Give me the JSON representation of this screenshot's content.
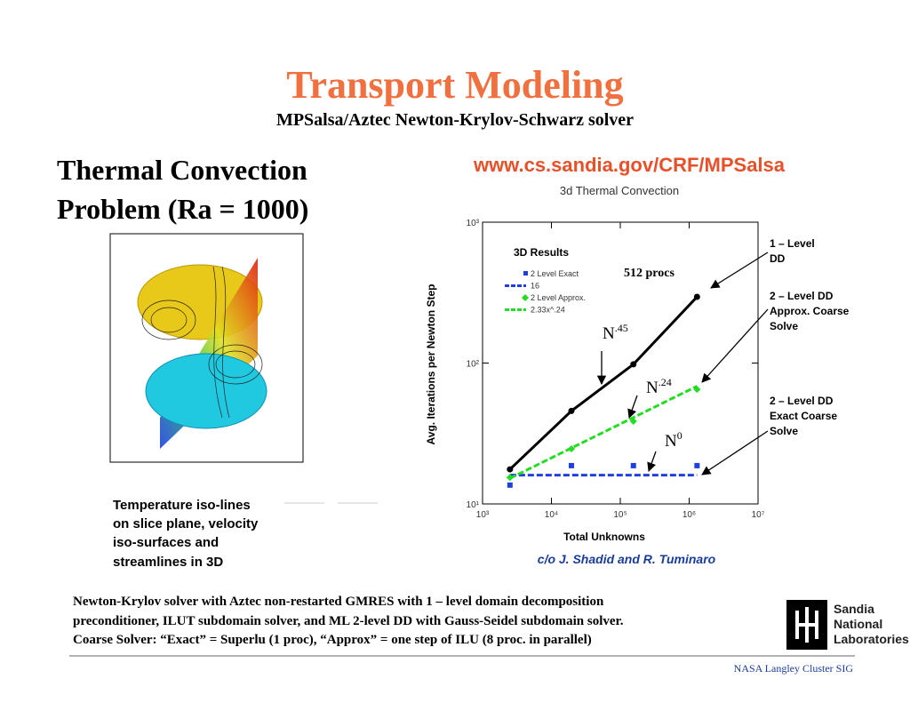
{
  "header": {
    "title": "Transport Modeling",
    "subtitle": "MPSalsa/Aztec Newton-Krylov-Schwarz solver"
  },
  "heading": [
    "Thermal Convection",
    "Problem (Ra = 1000)"
  ],
  "url": "www.cs.sandia.gov/CRF/MPSalsa",
  "caption": [
    "Temperature iso-lines",
    "on slice plane, velocity",
    "iso-surfaces and",
    "streamlines in 3D"
  ],
  "credit": "c/o J. Shadid and R. Tuminaro",
  "paragraph": [
    "Newton-Krylov solver with Aztec non-restarted GMRES with 1 – level domain decomposition",
    "preconditioner, ILUT subdomain solver, and ML 2-level DD with Gauss-Seidel subdomain solver.",
    "Coarse Solver: “Exact” = Superlu (1 proc), “Approx” = one step of ILU (8 proc. in parallel)"
  ],
  "footer": "NASA Langley Cluster SIG",
  "logo": [
    "Sandia",
    "National",
    "Laboratories"
  ],
  "annotations": [
    [
      "1 – Level",
      "DD"
    ],
    [
      "2 – Level DD",
      "Approx. Coarse",
      "Solve"
    ],
    [
      "2 – Level DD",
      "Exact Coarse",
      "Solve"
    ]
  ],
  "chart_data": {
    "type": "line",
    "title": "3d Thermal Convection",
    "x_label": "Total Unknowns",
    "y_label": "Avg. Iterations per Newton Step",
    "log_x": true,
    "log_y": true,
    "xlim": [
      1000,
      10000000
    ],
    "ylim": [
      10,
      1000
    ],
    "xticks": [
      {
        "value": 1000,
        "label": "10³"
      },
      {
        "value": 10000,
        "label": "10⁴"
      },
      {
        "value": 100000,
        "label": "10⁵"
      },
      {
        "value": 1000000,
        "label": "10⁶"
      },
      {
        "value": 10000000,
        "label": "10⁷"
      }
    ],
    "yticks": [
      {
        "value": 10,
        "label": "10¹"
      },
      {
        "value": 100,
        "label": "10²"
      },
      {
        "value": 1000,
        "label": "10³"
      }
    ],
    "notes": {
      "results": "3D Results",
      "procs": "512 procs",
      "n45": {
        "base": "N",
        "exp": ".45"
      },
      "n24": {
        "base": "N",
        "exp": ".24"
      },
      "n0": {
        "base": "N",
        "exp": "0"
      }
    },
    "series": [
      {
        "color": "#000000",
        "style": "line-markers",
        "marker": "circle",
        "x": [
          2500,
          19500,
          155000,
          1300000
        ],
        "values": [
          17.6,
          45.7,
          98,
          295
        ]
      },
      {
        "name": "2 Level Exact",
        "color": "#1f3fe0",
        "style": "markers",
        "marker": "square",
        "x": [
          2500,
          19500,
          155000,
          1300000
        ],
        "values": [
          13.6,
          18.7,
          18.7,
          18.7
        ]
      },
      {
        "name": "16",
        "color": "#1f3fe0",
        "style": "dashed",
        "x": [
          2500,
          1300000
        ],
        "values": [
          16,
          16
        ]
      },
      {
        "name": "2 Level Approx.",
        "color": "#22dd22",
        "style": "markers",
        "marker": "diamond",
        "x": [
          2500,
          19500,
          155000,
          1300000
        ],
        "values": [
          15.4,
          24.6,
          38.6,
          65
        ]
      },
      {
        "name": "2.33x^.24",
        "color": "#22dd22",
        "style": "dashed",
        "x": [
          2500,
          1300000
        ],
        "values": [
          15.2,
          68.5
        ]
      }
    ]
  }
}
